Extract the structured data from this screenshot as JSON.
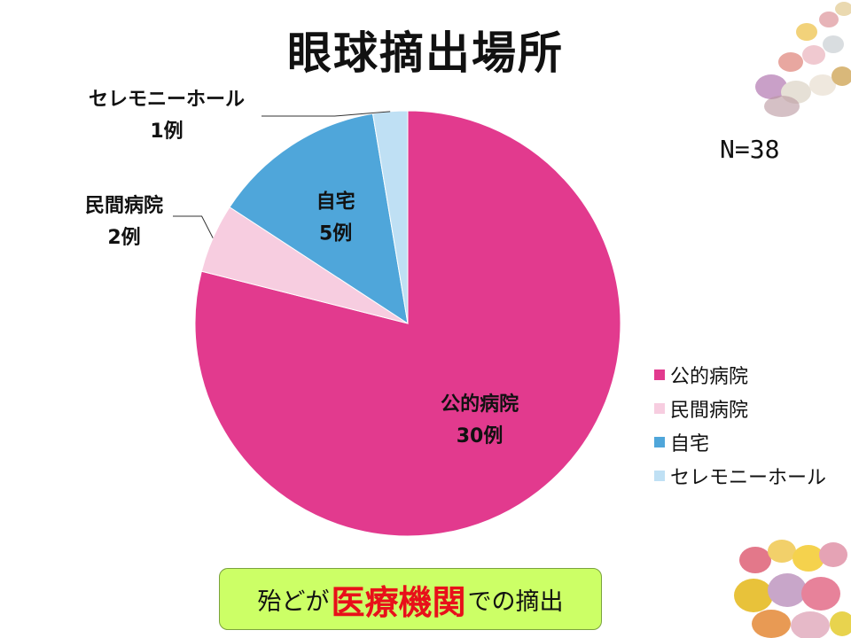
{
  "slide": {
    "title": "眼球摘出場所",
    "sample_size": "N=38"
  },
  "chart_data": {
    "type": "pie",
    "categories": [
      "公的病院",
      "民間病院",
      "自宅",
      "セレモニーホール"
    ],
    "values": [
      30,
      2,
      5,
      1
    ],
    "data_labels": [
      "30例",
      "2例",
      "5例",
      "1例"
    ],
    "colors": [
      "#e23a8e",
      "#f7cde0",
      "#4fa6da",
      "#bfe0f4"
    ],
    "legend": "right"
  },
  "callout": {
    "prefix": "殆どが",
    "emphasis": "医療機関",
    "suffix": "での摘出"
  },
  "decor": {
    "top_image": "candy-eggs-image",
    "bottom_image": "candy-eggs-image"
  }
}
